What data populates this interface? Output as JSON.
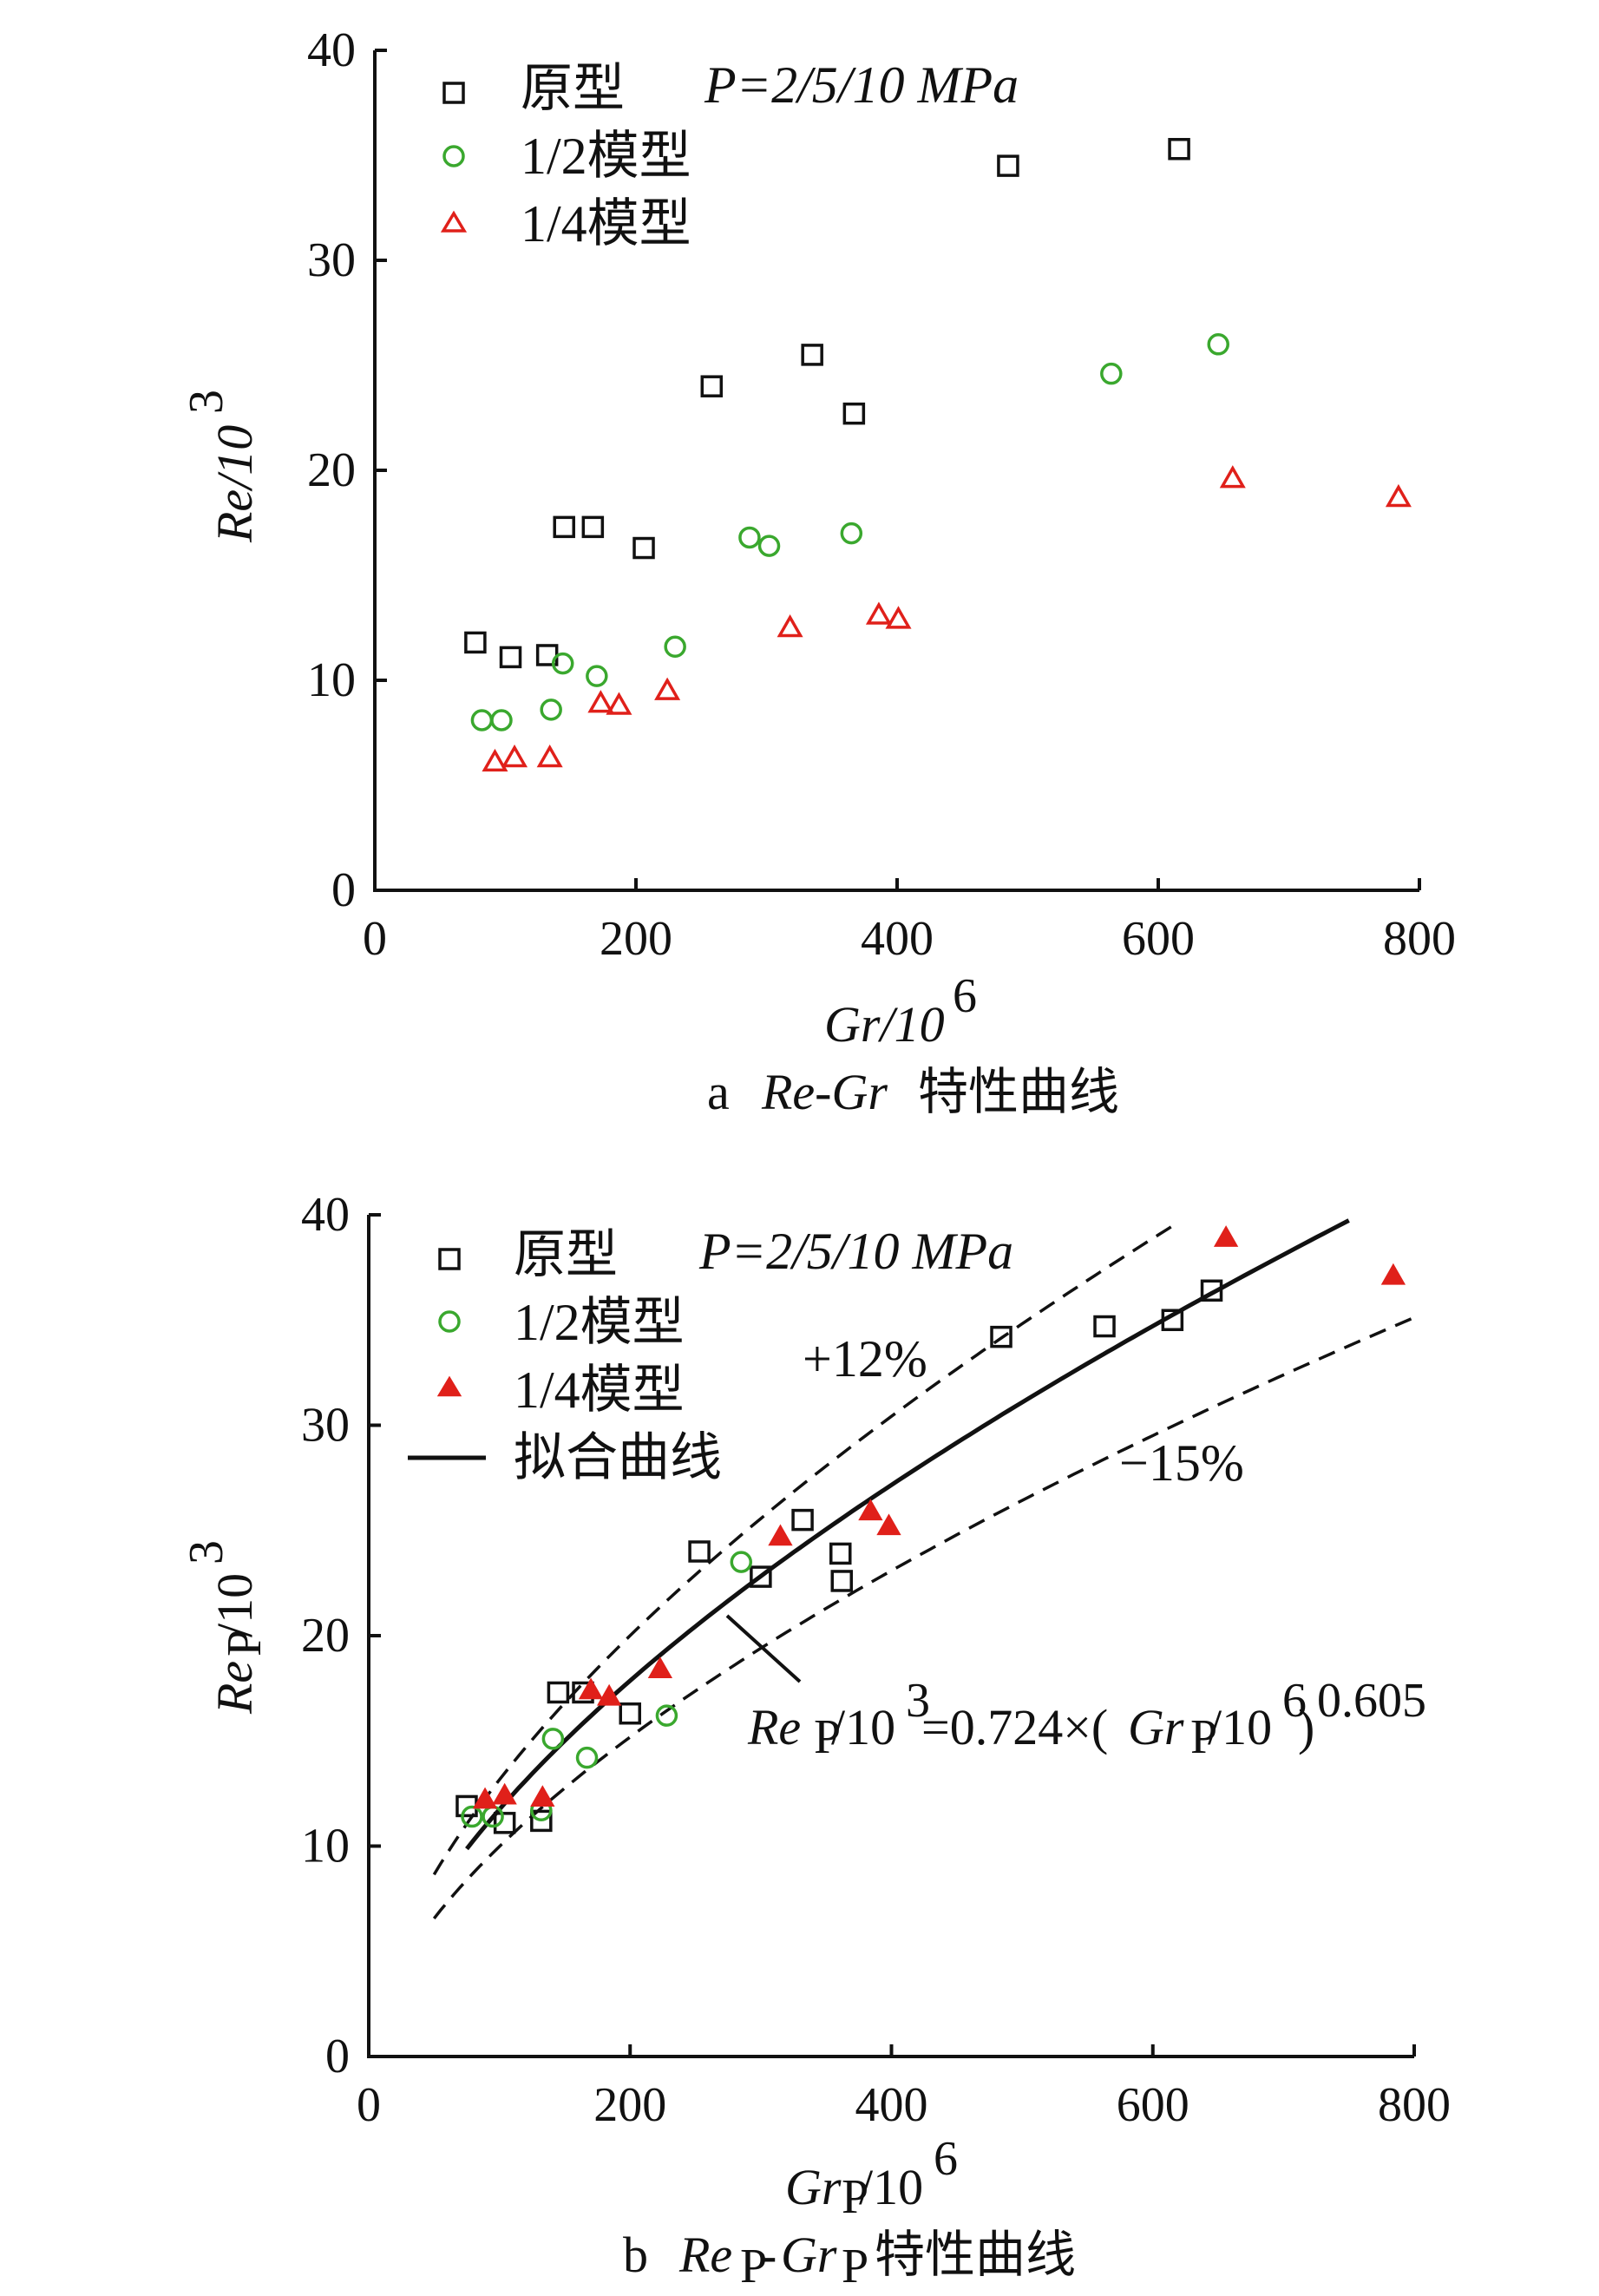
{
  "chart_data": [
    {
      "id": "a",
      "type": "scatter",
      "caption_prefix": "a",
      "caption_title": "Re-Gr",
      "caption_suffix": "特性曲线",
      "xlabel": "Gr/10",
      "xlabel_exp": "6",
      "ylabel": "Re/10",
      "ylabel_exp": "3",
      "xlim": [
        0,
        800
      ],
      "ylim": [
        0,
        40
      ],
      "xticks": [
        0,
        200,
        400,
        600,
        800
      ],
      "yticks": [
        0,
        10,
        20,
        30,
        40
      ],
      "legend_note": "P=2/5/10 MPa",
      "series": [
        {
          "name": "原型",
          "marker": "square",
          "color": "#111111",
          "points": [
            [
              77,
              11.8
            ],
            [
              104,
              11.1
            ],
            [
              132,
              11.2
            ],
            [
              145,
              17.3
            ],
            [
              167,
              17.3
            ],
            [
              206,
              16.3
            ],
            [
              258,
              24.0
            ],
            [
              335,
              25.5
            ],
            [
              367,
              22.7
            ],
            [
              485,
              34.5
            ],
            [
              616,
              35.3
            ]
          ]
        },
        {
          "name": "1/2模型",
          "marker": "circle",
          "color": "#3aa82e",
          "points": [
            [
              82,
              8.1
            ],
            [
              97,
              8.1
            ],
            [
              135,
              8.6
            ],
            [
              144,
              10.8
            ],
            [
              170,
              10.2
            ],
            [
              230,
              11.6
            ],
            [
              287,
              16.8
            ],
            [
              302,
              16.4
            ],
            [
              365,
              17.0
            ],
            [
              564,
              24.6
            ],
            [
              646,
              26.0
            ]
          ]
        },
        {
          "name": "1/4模型",
          "marker": "triangle",
          "color": "#e0201a",
          "points": [
            [
              92,
              6.1
            ],
            [
              107,
              6.3
            ],
            [
              134,
              6.3
            ],
            [
              173,
              8.9
            ],
            [
              187,
              8.8
            ],
            [
              224,
              9.5
            ],
            [
              318,
              12.5
            ],
            [
              386,
              13.1
            ],
            [
              401,
              12.9
            ],
            [
              657,
              19.6
            ],
            [
              784,
              18.7
            ]
          ]
        }
      ]
    },
    {
      "id": "b",
      "type": "scatter",
      "caption_prefix": "b",
      "caption_title_1": "Re",
      "caption_sub_1": "P",
      "caption_dash": "-",
      "caption_title_2": "Gr",
      "caption_sub_2": "P",
      "caption_suffix": "特性曲线",
      "xlabel": "Gr",
      "xlabel_sub": "P",
      "xlabel_rest": "/10",
      "xlabel_exp": "6",
      "ylabel": "Re",
      "ylabel_sub": "P",
      "ylabel_rest": "/10",
      "ylabel_exp": "3",
      "xlim": [
        0,
        800
      ],
      "ylim": [
        0,
        40
      ],
      "xticks": [
        0,
        200,
        400,
        600,
        800
      ],
      "yticks": [
        0,
        10,
        20,
        30,
        40
      ],
      "legend_note": "P=2/5/10 MPa",
      "fit_label": "拟合曲线",
      "fit": {
        "coef": 0.724,
        "exp": 0.605,
        "x_range": [
          75,
          750
        ]
      },
      "band_upper": {
        "label": "+12%",
        "factor": 1.12,
        "x_range": [
          50,
          620
        ]
      },
      "band_lower": {
        "label": "−15%",
        "factor": 0.85,
        "x_range": [
          50,
          800
        ]
      },
      "equation": {
        "a": "Re",
        "a_sub": "P",
        "b": "/10",
        "b_exp": "3",
        "c": "=0.724×(",
        "d": "Gr",
        "d_sub": "P",
        "e": "/10",
        "e_exp": "6",
        "f": ")",
        "f_exp": "0.605"
      },
      "series": [
        {
          "name": "原型",
          "marker": "square",
          "color": "#111111",
          "points": [
            [
              75,
              11.9
            ],
            [
              104,
              11.1
            ],
            [
              132,
              11.2
            ],
            [
              145,
              17.3
            ],
            [
              164,
              17.3
            ],
            [
              200,
              16.3
            ],
            [
              253,
              24.0
            ],
            [
              300,
              22.8
            ],
            [
              332,
              25.5
            ],
            [
              361,
              23.9
            ],
            [
              362,
              22.6
            ],
            [
              484,
              34.2
            ],
            [
              563,
              34.7
            ],
            [
              615,
              35.0
            ],
            [
              645,
              36.4
            ]
          ]
        },
        {
          "name": "1/2模型",
          "marker": "circle",
          "color": "#3aa82e",
          "points": [
            [
              79,
              11.4
            ],
            [
              95,
              11.4
            ],
            [
              132,
              11.7
            ],
            [
              141,
              15.1
            ],
            [
              167,
              14.2
            ],
            [
              228,
              16.2
            ],
            [
              285,
              23.5
            ]
          ]
        },
        {
          "name": "1/4模型",
          "marker": "triangle",
          "color": "#e0201a",
          "points": [
            [
              89,
              12.2
            ],
            [
              104,
              12.4
            ],
            [
              133,
              12.3
            ],
            [
              170,
              17.4
            ],
            [
              184,
              17.1
            ],
            [
              223,
              18.4
            ],
            [
              315,
              24.7
            ],
            [
              384,
              25.9
            ],
            [
              398,
              25.2
            ],
            [
              656,
              38.9
            ],
            [
              784,
              37.1
            ]
          ]
        }
      ]
    }
  ]
}
